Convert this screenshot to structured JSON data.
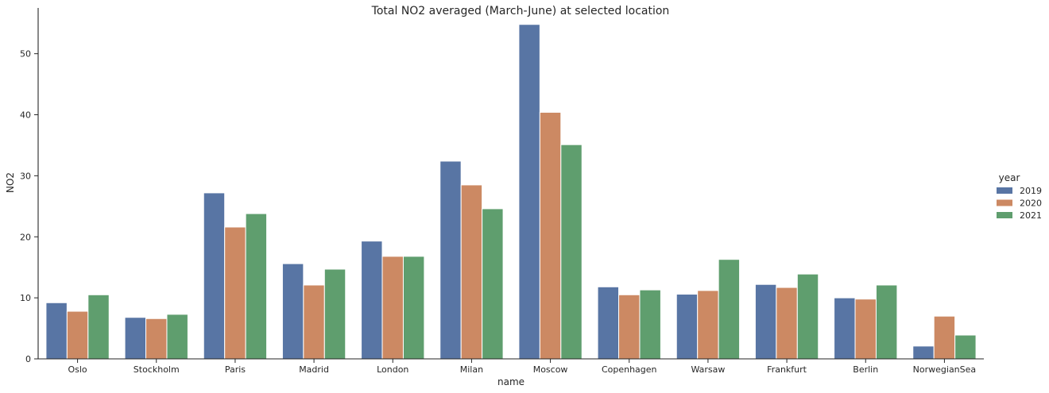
{
  "chart_data": {
    "type": "bar",
    "title": "Total NO2 averaged (March-June) at selected location",
    "xlabel": "name",
    "ylabel": "NO2",
    "ylim": [
      0,
      57.5
    ],
    "yticks": [
      0,
      10,
      20,
      30,
      40,
      50
    ],
    "grid": false,
    "legend": {
      "title": "year",
      "placement": "right"
    },
    "categories": [
      "Oslo",
      "Stockholm",
      "Paris",
      "Madrid",
      "London",
      "Milan",
      "Moscow",
      "Copenhagen",
      "Warsaw",
      "Frankfurt",
      "Berlin",
      "NorwegianSea"
    ],
    "series": [
      {
        "name": "2019",
        "color": "#5875a4",
        "values": [
          9.2,
          6.8,
          27.2,
          15.6,
          19.3,
          32.4,
          54.8,
          11.8,
          10.6,
          12.2,
          10.0,
          2.1
        ]
      },
      {
        "name": "2020",
        "color": "#cc8963",
        "values": [
          7.8,
          6.6,
          21.6,
          12.1,
          16.8,
          28.5,
          40.4,
          10.5,
          11.2,
          11.7,
          9.8,
          7.0
        ]
      },
      {
        "name": "2021",
        "color": "#5f9e6e",
        "values": [
          10.5,
          7.3,
          23.8,
          14.7,
          16.8,
          24.6,
          35.1,
          11.3,
          16.3,
          13.9,
          12.1,
          3.9
        ]
      }
    ]
  }
}
